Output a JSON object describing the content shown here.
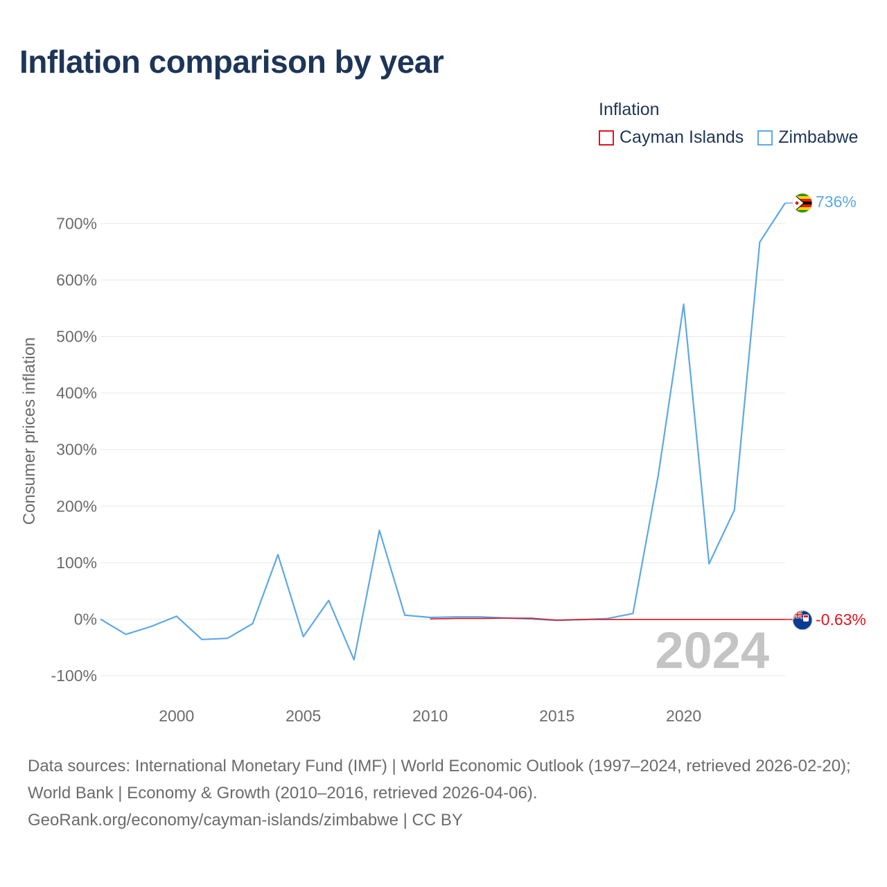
{
  "page": {
    "title": "Inflation comparison by year",
    "legend_title": "Inflation",
    "footer_sources": "Data sources: International Monetary Fund (IMF) | World Economic Outlook (1997–2024, retrieved 2026-02-20); World Bank | Economy & Growth (2010–2016, retrieved 2026-04-06).",
    "footer_link": "GeoRank.org/economy/cayman-islands/zimbabwe | CC BY"
  },
  "chart_data": {
    "type": "line",
    "title": "Inflation comparison by year",
    "xlabel": "",
    "ylabel": "Consumer prices inflation",
    "xlim": [
      1997,
      2024
    ],
    "ylim": [
      -100,
      736
    ],
    "y_ticks": [
      -100,
      0,
      100,
      200,
      300,
      400,
      500,
      600,
      700
    ],
    "y_tick_labels": [
      "-100%",
      "0%",
      "100%",
      "200%",
      "300%",
      "400%",
      "500%",
      "600%",
      "700%"
    ],
    "x_ticks": [
      2000,
      2005,
      2010,
      2015,
      2020
    ],
    "x_tick_labels": [
      "2000",
      "2005",
      "2010",
      "2015",
      "2020"
    ],
    "year_watermark": "2024",
    "legend_position": "top-right",
    "grid": true,
    "series": [
      {
        "name": "Cayman Islands",
        "color": "#e0141e",
        "end_label": "-0.63%",
        "flag_icon": "cayman-islands-flag-icon",
        "x": [
          2010,
          2011,
          2012,
          2013,
          2014,
          2015,
          2016,
          2017,
          2018,
          2019,
          2020,
          2021,
          2022,
          2023,
          2024
        ],
        "values": [
          0.3,
          1.3,
          1.2,
          1.8,
          1.6,
          -1.9,
          -0.6,
          -0.6,
          -0.6,
          -0.6,
          -0.6,
          -0.6,
          -0.6,
          -0.6,
          -0.63
        ]
      },
      {
        "name": "Zimbabwe",
        "color": "#5ca8e6",
        "end_label": "736%",
        "flag_icon": "zimbabwe-flag-icon",
        "x": [
          1997,
          1998,
          1999,
          2000,
          2001,
          2002,
          2003,
          2004,
          2005,
          2006,
          2007,
          2008,
          2009,
          2010,
          2011,
          2012,
          2013,
          2014,
          2015,
          2016,
          2017,
          2018,
          2019,
          2020,
          2021,
          2022,
          2023,
          2024
        ],
        "values": [
          0,
          -27,
          -13,
          5,
          -36,
          -34,
          -8,
          114,
          -31,
          33,
          -72,
          157,
          7,
          3,
          4,
          4,
          2,
          0,
          -2,
          -1,
          1,
          10,
          255,
          557,
          98,
          193,
          667,
          736
        ]
      }
    ]
  }
}
